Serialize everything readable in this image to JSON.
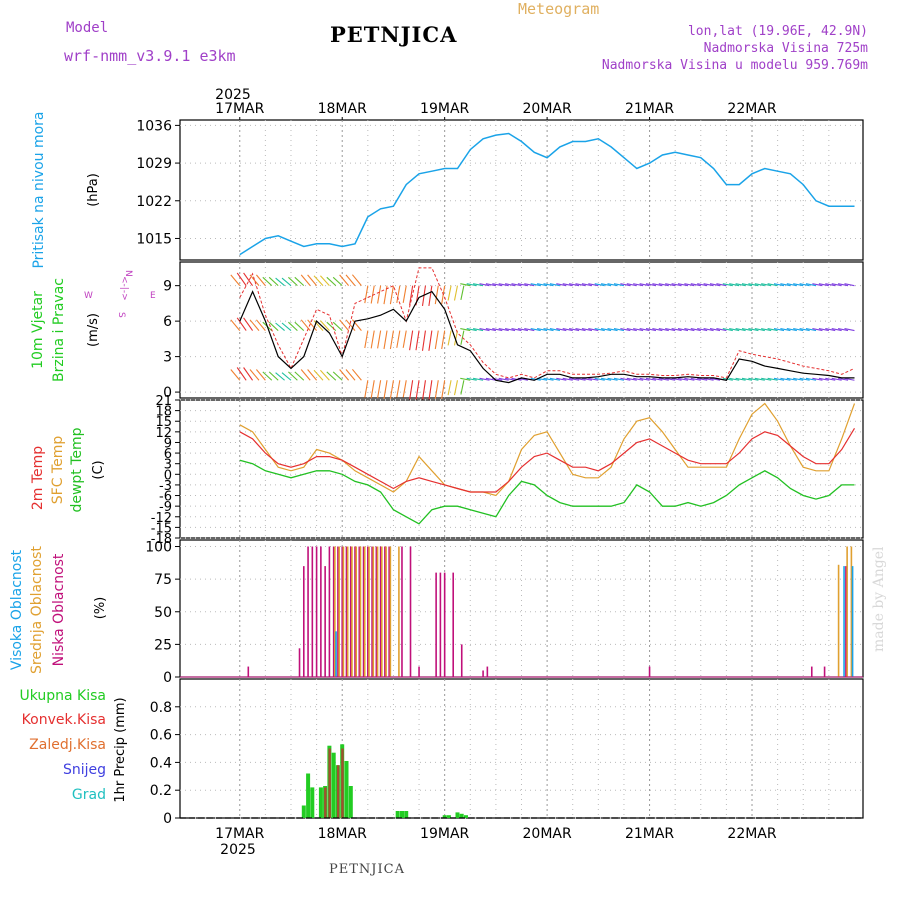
{
  "header": {
    "model_label": "Model",
    "model_name": "wrf-nmm_v3.9.1 e3km",
    "station": "PETNJICA",
    "meteogram": "Meteogram",
    "lonlat": "lon,lat (19.96E, 42.9N)",
    "altitude": "Nadmorska Visina 725m",
    "model_altitude": "Nadmorska Visina u modelu 959.769m",
    "watermark": "made by Angel",
    "footer_station": "PETNJICA"
  },
  "colors": {
    "pressure": "#1aa3e8",
    "wind_speed": "#000000",
    "gust": "#e53030",
    "temp2m": "#e53030",
    "sfc_temp": "#e0a030",
    "dewpoint": "#22c022",
    "cloud_high": "#1aa3e8",
    "cloud_mid": "#e0a030",
    "cloud_low": "#c0107a",
    "precip_total": "#22cc22",
    "precip_conv": "#e53030",
    "precip_frozen": "#e07030",
    "snow": "#4040e0",
    "graupel": "#20c0c0"
  },
  "chart_data": [
    {
      "type": "line",
      "panel": "pressure",
      "title": "Pritisak na nivou mora",
      "ylabel": "(hPa)",
      "ylim": [
        1011,
        1037
      ],
      "yticks": [
        "1036",
        "1029",
        "1022",
        "1015"
      ],
      "top_date_labels": {
        "year": "2025",
        "days": [
          "17MAR",
          "18MAR",
          "19MAR",
          "20MAR",
          "21MAR",
          "22MAR"
        ]
      },
      "x_hours": [
        0,
        3,
        6,
        9,
        12,
        15,
        18,
        21,
        24,
        27,
        30,
        33,
        36,
        39,
        42,
        45,
        48,
        51,
        54,
        57,
        60,
        63,
        66,
        69,
        72,
        75,
        78,
        81,
        84,
        87,
        90,
        93,
        96,
        99,
        102,
        105,
        108,
        111,
        114,
        117,
        120,
        123,
        126,
        129,
        132,
        135,
        138,
        141,
        144
      ],
      "series": [
        {
          "name": "MSLP",
          "values": [
            1012,
            1013.5,
            1015,
            1015.5,
            1014.5,
            1013.5,
            1014,
            1014,
            1013.5,
            1014,
            1019,
            1020.5,
            1021,
            1025,
            1027,
            1027.5,
            1028,
            1028,
            1031.5,
            1033.5,
            1034.2,
            1034.5,
            1033,
            1031,
            1030,
            1032,
            1033,
            1033,
            1033.5,
            1032,
            1030,
            1028,
            1029,
            1030.5,
            1031,
            1030.5,
            1030,
            1028,
            1025,
            1025,
            1027,
            1028,
            1027.5,
            1027,
            1025,
            1022,
            1021,
            1021,
            1021
          ]
        }
      ]
    },
    {
      "type": "line",
      "panel": "wind",
      "title": "10m Vjetar Brzina i Pravac",
      "ylabel": "(m/s)",
      "ylim": [
        -0.5,
        11
      ],
      "yticks": [
        "9",
        "6",
        "3",
        "0"
      ],
      "compass_labels": [
        "N",
        "<-|->",
        "W",
        "E",
        "S"
      ],
      "x_hours": [
        0,
        3,
        6,
        9,
        12,
        15,
        18,
        21,
        24,
        27,
        30,
        33,
        36,
        39,
        42,
        45,
        48,
        51,
        54,
        57,
        60,
        63,
        66,
        69,
        72,
        75,
        78,
        81,
        84,
        87,
        90,
        93,
        96,
        99,
        102,
        105,
        108,
        111,
        114,
        117,
        120,
        123,
        126,
        129,
        132,
        135,
        138,
        141,
        144
      ],
      "series": [
        {
          "name": "Wind speed",
          "values": [
            6,
            8.5,
            6,
            3,
            2,
            3,
            6,
            5,
            3,
            6,
            6.2,
            6.5,
            7,
            6,
            8,
            8.5,
            7,
            4,
            3.5,
            2,
            1,
            0.8,
            1.2,
            1,
            1.5,
            1.5,
            1.2,
            1.2,
            1.3,
            1.5,
            1.5,
            1.3,
            1.3,
            1.2,
            1.2,
            1.3,
            1.2,
            1.2,
            1.0,
            2.8,
            2.6,
            2.2,
            2.0,
            1.8,
            1.6,
            1.5,
            1.4,
            1.2,
            1.2
          ]
        },
        {
          "name": "Gusts",
          "values": [
            8,
            10,
            6.5,
            4,
            2,
            4.5,
            7,
            6.5,
            3,
            7.5,
            8,
            8.5,
            9,
            6,
            10.5,
            10.5,
            8,
            5,
            4,
            2.5,
            1.5,
            1.2,
            1.5,
            1.2,
            1.8,
            1.8,
            1.5,
            1.5,
            1.5,
            1.6,
            1.8,
            1.5,
            1.5,
            1.4,
            1.4,
            1.5,
            1.4,
            1.4,
            1.2,
            3.5,
            3.2,
            3.0,
            2.8,
            2.5,
            2.2,
            2.0,
            1.8,
            1.5,
            2.0
          ]
        }
      ]
    },
    {
      "type": "line",
      "panel": "temperature",
      "title": "2m Temp",
      "title2": "SFC Temp",
      "title3": "dewpt Temp",
      "ylabel": "(C)",
      "ylim": [
        -18,
        21
      ],
      "yticks": [
        "21",
        "18",
        "15",
        "12",
        "9",
        "6",
        "3",
        "0",
        "-3",
        "-6",
        "-9",
        "-12",
        "-15",
        "-18"
      ],
      "x_hours": [
        0,
        3,
        6,
        9,
        12,
        15,
        18,
        21,
        24,
        27,
        30,
        33,
        36,
        39,
        42,
        45,
        48,
        51,
        54,
        57,
        60,
        63,
        66,
        69,
        72,
        75,
        78,
        81,
        84,
        87,
        90,
        93,
        96,
        99,
        102,
        105,
        108,
        111,
        114,
        117,
        120,
        123,
        126,
        129,
        132,
        135,
        138,
        141,
        144
      ],
      "series": [
        {
          "name": "2m Temp",
          "values": [
            12,
            10,
            6,
            3,
            2,
            3,
            5,
            5,
            4,
            2,
            0,
            -2,
            -4,
            -2,
            -1,
            -2,
            -3,
            -4,
            -5,
            -5,
            -5,
            -2,
            2,
            5,
            6,
            4,
            2,
            2,
            1,
            3,
            6,
            9,
            10,
            8,
            6,
            4,
            3,
            3,
            3,
            6,
            10,
            12,
            11,
            8,
            5,
            3,
            3,
            7,
            13
          ]
        },
        {
          "name": "SFC Temp",
          "values": [
            14,
            12,
            7,
            2,
            1,
            2,
            7,
            6,
            4,
            1,
            -1,
            -3,
            -5,
            -2,
            5,
            1,
            -3,
            -4,
            -5,
            -5,
            -6,
            -2,
            7,
            11,
            12,
            6,
            0,
            -1,
            -1,
            2,
            10,
            15,
            16,
            12,
            7,
            2,
            2,
            2,
            2,
            10,
            17,
            20,
            15,
            8,
            2,
            1,
            1,
            10,
            20
          ]
        },
        {
          "name": "Dewpoint",
          "values": [
            4,
            3,
            1,
            0,
            -1,
            0,
            1,
            1,
            0,
            -2,
            -3,
            -5,
            -10,
            -12,
            -14,
            -10,
            -9,
            -9,
            -10,
            -11,
            -12,
            -6,
            -2,
            -3,
            -6,
            -8,
            -9,
            -9,
            -9,
            -9,
            -8,
            -3,
            -5,
            -9,
            -9,
            -8,
            -9,
            -8,
            -6,
            -3,
            -1,
            1,
            -1,
            -4,
            -6,
            -7,
            -6,
            -3,
            -3
          ]
        }
      ]
    },
    {
      "type": "bar",
      "panel": "cloud",
      "title": "Visoka Oblacnost",
      "title2": "Srednja Oblacnost",
      "title3": "Niska Oblacnost",
      "ylabel": "(%)",
      "ylim": [
        0,
        105
      ],
      "yticks": [
        "100",
        "75",
        "50",
        "25",
        "0"
      ],
      "series": [
        {
          "name": "Niska",
          "hours": [
            2,
            14,
            15,
            16,
            17,
            18,
            19,
            20,
            21,
            22,
            23,
            24,
            25,
            26,
            27,
            28,
            29,
            30,
            31,
            32,
            33,
            34,
            35,
            38,
            40,
            42,
            46,
            47,
            48,
            50,
            52,
            57,
            58,
            96,
            134,
            137,
            142
          ],
          "values": [
            8,
            22,
            85,
            100,
            100,
            100,
            100,
            85,
            100,
            100,
            100,
            100,
            100,
            100,
            100,
            100,
            100,
            100,
            100,
            100,
            100,
            100,
            100,
            100,
            100,
            8,
            80,
            80,
            80,
            80,
            25,
            5,
            8,
            8,
            8,
            8,
            85
          ]
        },
        {
          "name": "Srednja",
          "hours": [
            22,
            23,
            24,
            25,
            26,
            27,
            28,
            29,
            30,
            31,
            32,
            33,
            34,
            35,
            37,
            140,
            142,
            143
          ],
          "values": [
            100,
            100,
            100,
            100,
            100,
            100,
            100,
            100,
            100,
            100,
            100,
            100,
            100,
            100,
            100,
            86,
            100,
            100
          ]
        },
        {
          "name": "Visoka",
          "hours": [
            22,
            141,
            143
          ],
          "values": [
            35,
            85,
            85
          ]
        }
      ]
    },
    {
      "type": "bar",
      "panel": "precip",
      "legend": [
        "Ukupna Kisa",
        "Konvek.Kisa",
        "Zaledj.Kisa",
        "Snijeg",
        "Grad"
      ],
      "ylabel": "1hr Precip (mm)",
      "ylim": [
        0,
        1.0
      ],
      "yticks": [
        "0.8",
        "0.6",
        "0.4",
        "0.2",
        "0"
      ],
      "bottom_date_labels": {
        "year": "2025",
        "days": [
          "17MAR",
          "18MAR",
          "19MAR",
          "20MAR",
          "21MAR",
          "22MAR"
        ]
      },
      "series": [
        {
          "name": "Ukupna Kisa",
          "hours": [
            15,
            16,
            17,
            19,
            20,
            21,
            22,
            23,
            24,
            25,
            26,
            37,
            38,
            39,
            48,
            49,
            51,
            52,
            53
          ],
          "values": [
            0.09,
            0.32,
            0.22,
            0.22,
            0.23,
            0.52,
            0.47,
            0.38,
            0.53,
            0.41,
            0.23,
            0.05,
            0.05,
            0.05,
            0.02,
            0.02,
            0.04,
            0.03,
            0.02
          ]
        },
        {
          "name": "Konvek.Kisa",
          "hours": [
            20,
            21,
            23,
            24
          ],
          "values": [
            0.22,
            0.5,
            0.38,
            0.5
          ]
        }
      ]
    }
  ]
}
